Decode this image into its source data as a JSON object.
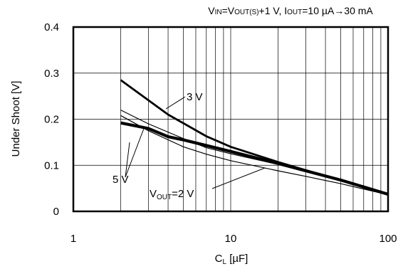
{
  "chart_data": {
    "type": "line",
    "title": {
      "parts": [
        "V",
        "IN",
        "=V",
        "OUT(S)",
        "+1 V, I",
        "OUT",
        "=10 µA→30 mA"
      ]
    },
    "xlabel": {
      "main": "C",
      "sub": "L",
      "rest": " [µF]"
    },
    "ylabel": "Under Shoot [V]",
    "xscale": "log",
    "xlim": [
      1,
      100
    ],
    "ylim": [
      0,
      0.4
    ],
    "xticks": [
      1,
      10,
      100
    ],
    "xtick_labels": [
      "1",
      "10",
      "100"
    ],
    "yticks": [
      0,
      0.1,
      0.2,
      0.3,
      0.4
    ],
    "ytick_labels": [
      "0",
      "0.1",
      "0.2",
      "0.3",
      "0.4"
    ],
    "grid": true,
    "series": [
      {
        "name": "3 V",
        "x": [
          2,
          4,
          7,
          10,
          20,
          50,
          100
        ],
        "y": [
          0.285,
          0.21,
          0.163,
          0.14,
          0.107,
          0.067,
          0.038
        ]
      },
      {
        "name": "5 V",
        "x": [
          2,
          3,
          4,
          5,
          7,
          10,
          20,
          50,
          100
        ],
        "y": [
          0.192,
          0.18,
          0.162,
          0.155,
          0.143,
          0.13,
          0.104,
          0.068,
          0.037
        ]
      },
      {
        "name": "",
        "x": [
          2,
          3,
          5,
          7,
          10,
          20,
          50,
          100
        ],
        "y": [
          0.22,
          0.19,
          0.158,
          0.138,
          0.125,
          0.102,
          0.07,
          0.038
        ]
      },
      {
        "name": "",
        "x": [
          2,
          3,
          5,
          7,
          10,
          20,
          30,
          50,
          100
        ],
        "y": [
          0.208,
          0.175,
          0.14,
          0.124,
          0.11,
          0.088,
          0.076,
          0.06,
          0.036
        ]
      }
    ],
    "annotations": [
      {
        "text": "3 V"
      },
      {
        "text": "5 V"
      },
      {
        "parts": [
          "V",
          "OUT",
          "=2 V"
        ]
      }
    ]
  }
}
